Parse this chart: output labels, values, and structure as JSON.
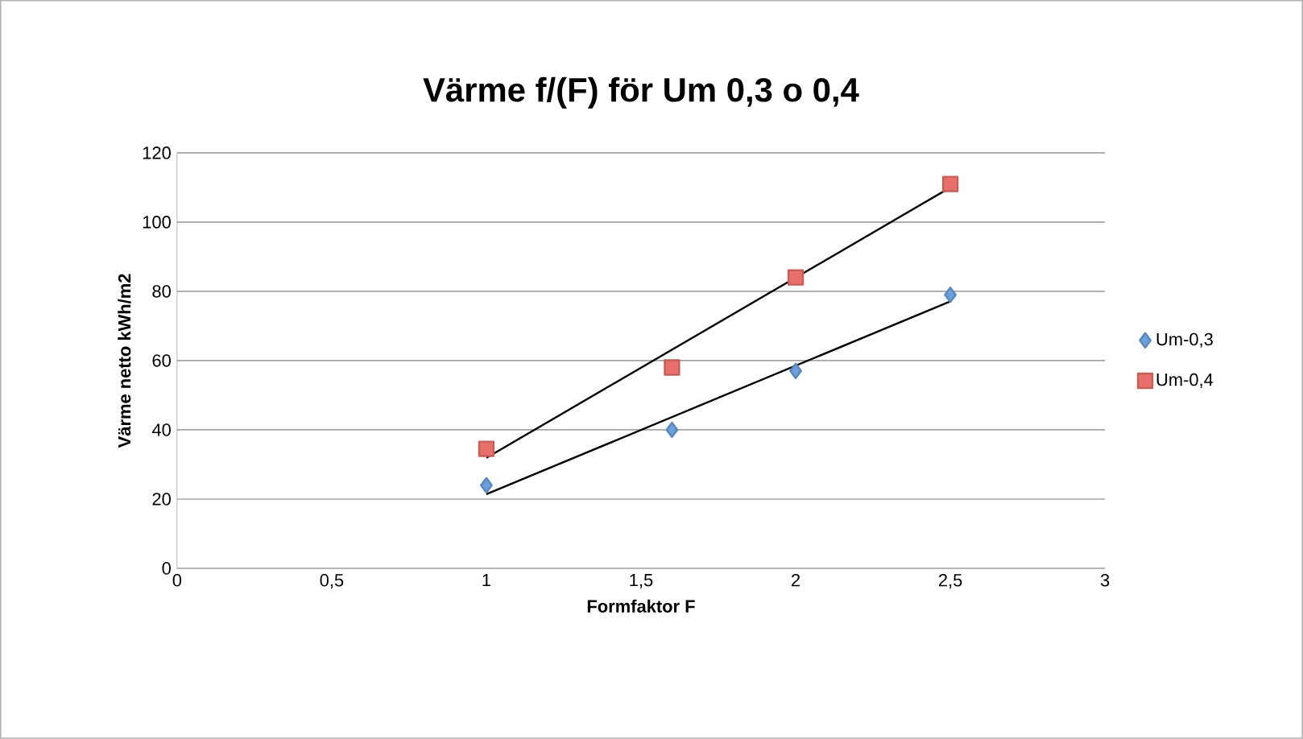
{
  "chart_data": {
    "type": "scatter",
    "title": "Värme f/(F) för Um 0,3 o 0,4",
    "xlabel": "Formfaktor F",
    "ylabel": "Värme netto kWh/m2",
    "xlim": [
      0,
      3
    ],
    "xticks": [
      0,
      {
        "value": 0.5,
        "label": "0,5"
      },
      1,
      {
        "value": 1.5,
        "label": "1,5"
      },
      2,
      {
        "value": 2.5,
        "label": "2,5"
      },
      3
    ],
    "ylim": [
      0,
      120
    ],
    "yticks": [
      0,
      20,
      40,
      60,
      80,
      100,
      120
    ],
    "grid": "y",
    "legend": "right",
    "series": [
      {
        "name": "Um-0,3",
        "color": "#6a9fdc",
        "marker": "diamond",
        "x": [
          1,
          1.6,
          2,
          2.5
        ],
        "values": [
          24,
          40,
          57,
          79
        ]
      },
      {
        "name": "Um-0,4",
        "color": "#e8706a",
        "marker": "square",
        "x": [
          1,
          1.6,
          2,
          2.5
        ],
        "values": [
          34.5,
          58,
          84,
          111
        ]
      },
      {
        "type": "line",
        "color": "#000000",
        "marker": "none",
        "line_style": "solid",
        "x": [
          1,
          2.5
        ],
        "values": [
          21.4,
          77.1
        ]
      },
      {
        "type": "line",
        "color": "#000000",
        "marker": "none",
        "line_style": "solid",
        "x": [
          1,
          2.5
        ],
        "values": [
          31.9,
          110
        ]
      }
    ]
  }
}
